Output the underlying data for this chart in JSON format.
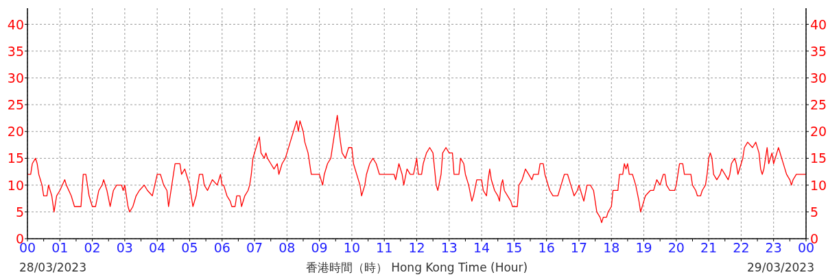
{
  "chart_data": {
    "type": "line",
    "xlabel": "香港時間（時） Hong Kong Time (Hour)",
    "annotations": [
      "28/03/2023",
      "29/03/2023"
    ],
    "xlim": [
      0,
      24
    ],
    "ylim": [
      0,
      43
    ],
    "y2lim": [
      0,
      43
    ],
    "xticks": [
      {
        "value": 0,
        "label": "00"
      },
      {
        "value": 0.5,
        "label": null
      },
      {
        "value": 1,
        "label": "01"
      },
      {
        "value": 1.5,
        "label": null
      },
      {
        "value": 2,
        "label": "02"
      },
      {
        "value": 2.5,
        "label": null
      },
      {
        "value": 3,
        "label": "03"
      },
      {
        "value": 3.5,
        "label": null
      },
      {
        "value": 4,
        "label": "04"
      },
      {
        "value": 4.5,
        "label": null
      },
      {
        "value": 5,
        "label": "05"
      },
      {
        "value": 5.5,
        "label": null
      },
      {
        "value": 6,
        "label": "06"
      },
      {
        "value": 6.5,
        "label": null
      },
      {
        "value": 7,
        "label": "07"
      },
      {
        "value": 7.5,
        "label": null
      },
      {
        "value": 8,
        "label": "08"
      },
      {
        "value": 8.5,
        "label": null
      },
      {
        "value": 9,
        "label": "09"
      },
      {
        "value": 9.5,
        "label": null
      },
      {
        "value": 10,
        "label": "10"
      },
      {
        "value": 10.5,
        "label": null
      },
      {
        "value": 11,
        "label": "11"
      },
      {
        "value": 11.5,
        "label": null
      },
      {
        "value": 12,
        "label": "12"
      },
      {
        "value": 12.5,
        "label": null
      },
      {
        "value": 13,
        "label": "13"
      },
      {
        "value": 13.5,
        "label": null
      },
      {
        "value": 14,
        "label": "14"
      },
      {
        "value": 14.5,
        "label": null
      },
      {
        "value": 15,
        "label": "15"
      },
      {
        "value": 15.5,
        "label": null
      },
      {
        "value": 16,
        "label": "16"
      },
      {
        "value": 16.5,
        "label": null
      },
      {
        "value": 17,
        "label": "17"
      },
      {
        "value": 17.5,
        "label": null
      },
      {
        "value": 18,
        "label": "18"
      },
      {
        "value": 18.5,
        "label": null
      },
      {
        "value": 19,
        "label": "19"
      },
      {
        "value": 19.5,
        "label": null
      },
      {
        "value": 20,
        "label": "20"
      },
      {
        "value": 20.5,
        "label": null
      },
      {
        "value": 21,
        "label": "21"
      },
      {
        "value": 21.5,
        "label": null
      },
      {
        "value": 22,
        "label": "22"
      },
      {
        "value": 22.5,
        "label": null
      },
      {
        "value": 23,
        "label": "23"
      },
      {
        "value": 23.5,
        "label": null
      },
      {
        "value": 24,
        "label": "00"
      }
    ],
    "yticks": [
      0,
      5,
      10,
      15,
      20,
      25,
      30,
      35,
      40
    ],
    "y2ticks": [
      0,
      5,
      10,
      15,
      20,
      25,
      30,
      35,
      40
    ],
    "grid": true,
    "marker": "none",
    "line_style": "solid",
    "series": [
      {
        "color": "#ff0000",
        "x": [
          0,
          0.1,
          0.15,
          0.25,
          0.3,
          0.35,
          0.45,
          0.5,
          0.6,
          0.65,
          0.75,
          0.82,
          0.9,
          1,
          1.15,
          1.2,
          1.35,
          1.45,
          1.65,
          1.72,
          1.8,
          1.9,
          2,
          2.1,
          2.2,
          2.3,
          2.35,
          2.45,
          2.55,
          2.65,
          2.75,
          2.9,
          2.95,
          3,
          3.05,
          3.1,
          3.15,
          3.25,
          3.35,
          3.45,
          3.6,
          3.7,
          3.85,
          4,
          4.1,
          4.2,
          4.3,
          4.35,
          4.45,
          4.55,
          4.7,
          4.75,
          4.85,
          4.9,
          5,
          5.1,
          5.2,
          5.3,
          5.4,
          5.45,
          5.55,
          5.7,
          5.85,
          5.95,
          6,
          6.05,
          6.15,
          6.25,
          6.3,
          6.4,
          6.45,
          6.55,
          6.6,
          6.7,
          6.8,
          6.85,
          6.9,
          6.95,
          7,
          7.1,
          7.15,
          7.2,
          7.3,
          7.35,
          7.4,
          7.5,
          7.6,
          7.7,
          7.75,
          7.85,
          7.95,
          8,
          8.1,
          8.2,
          8.3,
          8.35,
          8.4,
          8.5,
          8.55,
          8.65,
          8.75,
          9,
          9.1,
          9.15,
          9.25,
          9.35,
          9.45,
          9.55,
          9.65,
          9.7,
          9.8,
          9.9,
          10,
          10.05,
          10.15,
          10.25,
          10.3,
          10.4,
          10.45,
          10.55,
          10.65,
          10.75,
          10.85,
          11,
          11.3,
          11.35,
          11.45,
          11.55,
          11.6,
          11.7,
          11.8,
          11.9,
          12,
          12.05,
          12.15,
          12.2,
          12.3,
          12.4,
          12.5,
          12.55,
          12.6,
          12.65,
          12.75,
          12.8,
          12.9,
          13,
          13.1,
          13.15,
          13.3,
          13.35,
          13.45,
          13.5,
          13.6,
          13.7,
          13.75,
          13.85,
          14,
          14.05,
          14.15,
          14.2,
          14.25,
          14.3,
          14.4,
          14.5,
          14.55,
          14.6,
          14.65,
          14.7,
          14.8,
          14.9,
          14.95,
          15.1,
          15.15,
          15.25,
          15.3,
          15.35,
          15.45,
          15.55,
          15.6,
          15.75,
          15.8,
          15.9,
          15.95,
          16,
          16.1,
          16.2,
          16.35,
          16.45,
          16.55,
          16.65,
          16.75,
          16.85,
          16.95,
          17,
          17.1,
          17.15,
          17.25,
          17.35,
          17.45,
          17.5,
          17.55,
          17.65,
          17.7,
          17.75,
          17.85,
          17.9,
          18,
          18.05,
          18.2,
          18.25,
          18.35,
          18.4,
          18.45,
          18.5,
          18.55,
          18.65,
          18.75,
          18.85,
          18.9,
          18.95,
          19,
          19.05,
          19.2,
          19.3,
          19.35,
          19.4,
          19.5,
          19.55,
          19.6,
          19.65,
          19.7,
          19.8,
          19.95,
          20,
          20.05,
          20.1,
          20.2,
          20.25,
          20.45,
          20.5,
          20.6,
          20.65,
          20.75,
          20.8,
          20.9,
          20.95,
          21,
          21.05,
          21.1,
          21.15,
          21.25,
          21.35,
          21.4,
          21.5,
          21.6,
          21.65,
          21.7,
          21.8,
          21.85,
          21.9,
          22,
          22.05,
          22.1,
          22.2,
          22.35,
          22.45,
          22.55,
          22.6,
          22.65,
          22.7,
          22.75,
          22.8,
          22.85,
          22.9,
          22.95,
          23,
          23.05,
          23.1,
          23.15,
          23.25,
          23.35,
          23.4,
          23.5,
          23.55,
          23.6,
          23.7,
          23.85,
          24
        ],
        "values": [
          12,
          12,
          14,
          15,
          14,
          12,
          10,
          8,
          8,
          10,
          8,
          5,
          8,
          9,
          11,
          10,
          8,
          6,
          6,
          12,
          12,
          8,
          6,
          6,
          9,
          10,
          11,
          9,
          6,
          9,
          10,
          10,
          9,
          10,
          8,
          6,
          5,
          6,
          8,
          9,
          10,
          9,
          8,
          12,
          12,
          10,
          9,
          6,
          10,
          14,
          14,
          12,
          13,
          12,
          10,
          6,
          8,
          12,
          12,
          10,
          9,
          11,
          10,
          12,
          10,
          10,
          8,
          7,
          6,
          6,
          8,
          8,
          6,
          8,
          9,
          10,
          12,
          15,
          16,
          18,
          19,
          16,
          15,
          16,
          15,
          14,
          13,
          14,
          12,
          14,
          15,
          16,
          18,
          20,
          22,
          20,
          22,
          20,
          18,
          16,
          12,
          12,
          10,
          12,
          14,
          15,
          19,
          23,
          18,
          16,
          15,
          17,
          17,
          14,
          12,
          10,
          8,
          10,
          12,
          14,
          15,
          14,
          12,
          12,
          12,
          11,
          14,
          12,
          10,
          13,
          12,
          12,
          15,
          12,
          12,
          14,
          16,
          17,
          16,
          13,
          10,
          9,
          12,
          16,
          17,
          16,
          16,
          12,
          12,
          15,
          14,
          12,
          10,
          7,
          8,
          11,
          11,
          9,
          8,
          11,
          13,
          11,
          9,
          8,
          7,
          10,
          11,
          9,
          8,
          7,
          6,
          6,
          10,
          11,
          12,
          13,
          12,
          11,
          12,
          12,
          14,
          14,
          12,
          11,
          9,
          8,
          8,
          10,
          12,
          12,
          10,
          8,
          9,
          10,
          8,
          7,
          10,
          10,
          9,
          7,
          5,
          4,
          3,
          4,
          4,
          5,
          6,
          9,
          9,
          12,
          12,
          14,
          13,
          14,
          12,
          12,
          10,
          7,
          5,
          6,
          7,
          8,
          9,
          9,
          10,
          11,
          10,
          11,
          12,
          12,
          10,
          9,
          9,
          10,
          12,
          14,
          14,
          12,
          12,
          10,
          9,
          8,
          8,
          9,
          10,
          12,
          15,
          16,
          15,
          12,
          11,
          12,
          13,
          12,
          11,
          12,
          14,
          15,
          14,
          12,
          14,
          15,
          17,
          18,
          17,
          18,
          16,
          13,
          12,
          13,
          15,
          17,
          14,
          15,
          16,
          14,
          15,
          16,
          17,
          15,
          13,
          12,
          11,
          10,
          11,
          12,
          12,
          12
        ]
      }
    ]
  }
}
